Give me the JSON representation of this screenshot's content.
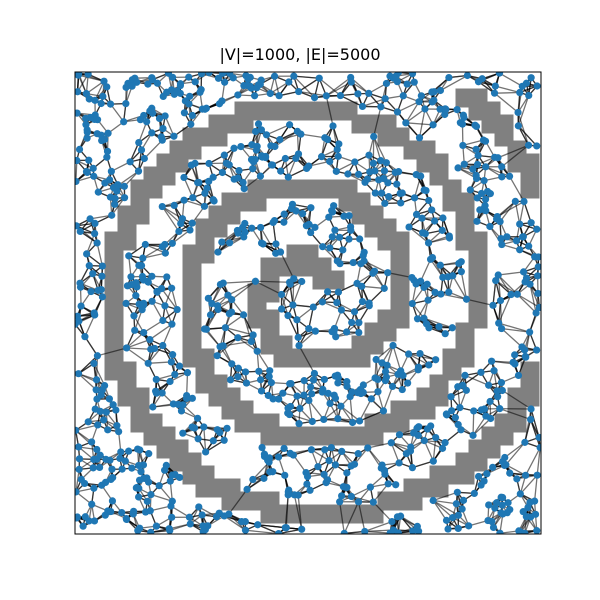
{
  "chart_data": {
    "type": "scatter",
    "title": "|V|=1000, |E|=5000",
    "xlabel": "",
    "ylabel": "",
    "xlim": [
      0,
      1
    ],
    "ylim": [
      0,
      1
    ],
    "grid": false,
    "axis_ticks": false,
    "num_vertices": 1000,
    "num_edges": 5000,
    "obstacle": "spiral",
    "colors": {
      "node": "#1f77b4",
      "edge": "#000000",
      "obstacle": "#808080",
      "frame": "#000000"
    }
  }
}
